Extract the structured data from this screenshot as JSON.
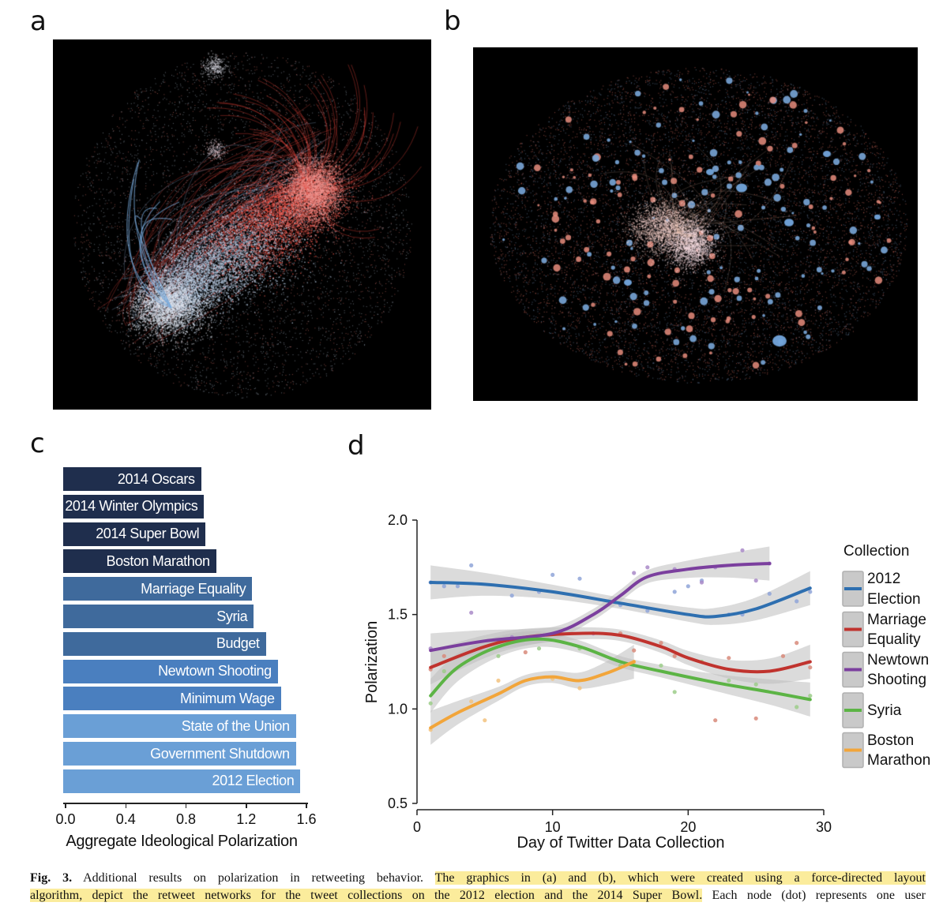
{
  "panels": {
    "a": "a",
    "b": "b",
    "c": "c",
    "d": "d"
  },
  "colors": {
    "background": "#ffffff",
    "network_background": "#000000",
    "network_red": "#e0483f",
    "network_blue": "#7aa6d6",
    "highlight": "#fbec9c",
    "band": "#bdbdbd"
  },
  "chart_data": [
    {
      "panel": "c",
      "type": "bar",
      "orientation": "horizontal",
      "categories": [
        "2014 Oscars",
        "2014 Winter Olympics",
        "2014 Super Bowl",
        "Boston Marathon",
        "Marriage Equality",
        "Syria",
        "Budget",
        "Newtown Shooting",
        "Minimum Wage",
        "State of the Union",
        "Government Shutdown",
        "2012 Election"
      ],
      "values": [
        0.9,
        0.92,
        0.93,
        1.0,
        1.24,
        1.25,
        1.33,
        1.41,
        1.43,
        1.53,
        1.53,
        1.56
      ],
      "bar_colors": [
        "#1f2e4d",
        "#1f2e4d",
        "#1f2e4d",
        "#1f2e4d",
        "#3f6a9c",
        "#3f6a9c",
        "#3f6a9c",
        "#4a7fbf",
        "#4a7fbf",
        "#6a9fd6",
        "#6a9fd6",
        "#6a9fd6"
      ],
      "xlabel": "Aggregate Ideological Polarization",
      "ylabel": "",
      "xlim": [
        0,
        1.6
      ],
      "xticks": [
        "0.0",
        "0.4",
        "0.8",
        "1.2",
        "1.6"
      ],
      "grid": false
    },
    {
      "panel": "d",
      "type": "line",
      "xlabel": "Day of Twitter Data Collection",
      "ylabel": "Polarization",
      "xlim": [
        0,
        30
      ],
      "ylim": [
        0.5,
        2.0
      ],
      "xticks": [
        "0",
        "10",
        "20",
        "30"
      ],
      "yticks": [
        "0.5",
        "1.0",
        "1.5",
        "2.0"
      ],
      "grid": false,
      "legend": {
        "title": "Collection",
        "placement": "right"
      },
      "series": [
        {
          "name": "2012 Election",
          "legend_lines": [
            "2012",
            "Election"
          ],
          "color": "#2e6fb0",
          "point_color": "#8fa5d8",
          "x": [
            1,
            5,
            10,
            15,
            20,
            22,
            25,
            29
          ],
          "y": [
            1.67,
            1.66,
            1.62,
            1.56,
            1.5,
            1.49,
            1.53,
            1.64
          ],
          "points": [
            [
              1,
              1.67
            ],
            [
              2,
              1.65
            ],
            [
              3,
              1.65
            ],
            [
              4,
              1.76
            ],
            [
              7,
              1.6
            ],
            [
              9,
              1.62
            ],
            [
              10,
              1.71
            ],
            [
              12,
              1.69
            ],
            [
              15,
              1.55
            ],
            [
              17,
              1.52
            ],
            [
              19,
              1.62
            ],
            [
              20,
              1.65
            ],
            [
              21,
              1.68
            ],
            [
              23,
              1.5
            ],
            [
              24,
              1.5
            ],
            [
              26,
              1.61
            ],
            [
              28,
              1.57
            ],
            [
              29,
              1.62
            ]
          ]
        },
        {
          "name": "Marriage Equality",
          "legend_lines": [
            "Marriage",
            "Equality"
          ],
          "color": "#c0332e",
          "point_color": "#d88a7a",
          "x": [
            1,
            5,
            8,
            12,
            15,
            18,
            20,
            23,
            26,
            29
          ],
          "y": [
            1.22,
            1.33,
            1.38,
            1.4,
            1.39,
            1.33,
            1.27,
            1.21,
            1.2,
            1.25
          ],
          "points": [
            [
              1,
              1.21
            ],
            [
              2,
              1.28
            ],
            [
              8,
              1.3
            ],
            [
              15,
              1.4
            ],
            [
              16,
              1.31
            ],
            [
              18,
              1.35
            ],
            [
              19,
              1.28
            ],
            [
              22,
              0.94
            ],
            [
              23,
              1.27
            ],
            [
              25,
              0.95
            ],
            [
              27,
              1.28
            ],
            [
              28,
              1.35
            ],
            [
              29,
              1.22
            ]
          ]
        },
        {
          "name": "Newtown Shooting",
          "legend_lines": [
            "Newtown",
            "Shooting"
          ],
          "color": "#7b3f9e",
          "point_color": "#a98ac8",
          "x": [
            1,
            5,
            10,
            13,
            15,
            17,
            20,
            23,
            26
          ],
          "y": [
            1.31,
            1.36,
            1.4,
            1.5,
            1.6,
            1.7,
            1.74,
            1.76,
            1.77
          ],
          "points": [
            [
              1,
              1.32
            ],
            [
              4,
              1.51
            ],
            [
              7,
              1.38
            ],
            [
              13,
              1.4
            ],
            [
              16,
              1.72
            ],
            [
              17,
              1.75
            ],
            [
              19,
              1.74
            ],
            [
              21,
              1.67
            ],
            [
              22,
              1.75
            ],
            [
              24,
              1.84
            ],
            [
              25,
              1.68
            ],
            [
              26,
              1.77
            ]
          ]
        },
        {
          "name": "Syria",
          "legend_lines": [
            "Syria"
          ],
          "color": "#5cb445",
          "point_color": "#9ccd8a",
          "x": [
            1,
            3,
            6,
            9,
            12,
            15,
            18,
            22,
            26,
            29
          ],
          "y": [
            1.07,
            1.22,
            1.33,
            1.37,
            1.33,
            1.25,
            1.2,
            1.14,
            1.09,
            1.05
          ],
          "points": [
            [
              1,
              1.03
            ],
            [
              2,
              1.2
            ],
            [
              6,
              1.28
            ],
            [
              9,
              1.32
            ],
            [
              12,
              1.32
            ],
            [
              15,
              1.23
            ],
            [
              18,
              1.23
            ],
            [
              19,
              1.09
            ],
            [
              21,
              1.25
            ],
            [
              23,
              1.15
            ],
            [
              25,
              1.13
            ],
            [
              28,
              1.01
            ],
            [
              29,
              1.07
            ]
          ]
        },
        {
          "name": "Boston Marathon",
          "legend_lines": [
            "Boston",
            "Marathon"
          ],
          "color": "#f2a53a",
          "point_color": "#f2c27e",
          "x": [
            1,
            3,
            6,
            8,
            10,
            12,
            14,
            16
          ],
          "y": [
            0.9,
            0.98,
            1.08,
            1.15,
            1.17,
            1.15,
            1.19,
            1.25
          ],
          "points": [
            [
              1,
              0.89
            ],
            [
              4,
              1.04
            ],
            [
              5,
              0.94
            ],
            [
              6,
              1.15
            ],
            [
              10,
              1.16
            ],
            [
              12,
              1.11
            ],
            [
              16,
              1.25
            ]
          ]
        }
      ]
    }
  ],
  "caption": {
    "fig_label": "Fig. 3.",
    "line1_plain": " Additional results on polarization in retweeting behavior. ",
    "line1_highlight": "The graphics in (a) and (b), which were created using a force-directed layout",
    "line2_highlight": "algorithm, depict the retweet networks for the tweet collections on the 2012 election and the 2014 Super Bowl.",
    "line2_plain": " Each node (dot) represents one user"
  }
}
